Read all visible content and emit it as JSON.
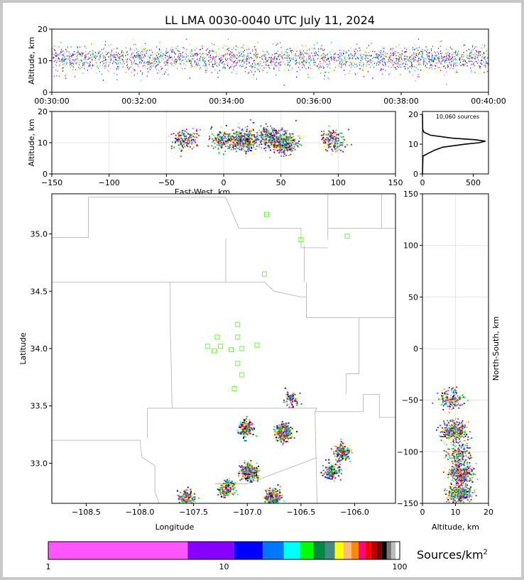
{
  "chart_data": [
    {
      "type": "scatter",
      "panel": "time-altitude",
      "title": "LL LMA 0030-0040 UTC July 11, 2024",
      "ylabel": "Altitude, km",
      "xlabel": "",
      "xticks": [
        "00:30:00",
        "00:32:00",
        "00:34:00",
        "00:36:00",
        "00:38:00",
        "00:40:00"
      ],
      "xlim_minutes": [
        0,
        10
      ],
      "yticks": [
        0,
        10,
        20
      ],
      "ylim": [
        0,
        20
      ],
      "description_of_density": "sources continuous through the period, concentrated at 6-15 km, mostly near 11 km"
    },
    {
      "type": "heatmap",
      "panel": "eastwest-altitude",
      "xlabel": "East-West, km",
      "ylabel": "Altitude, km",
      "xticks": [
        -150,
        -100,
        -50,
        0,
        50,
        100,
        150
      ],
      "xlim": [
        -150,
        150
      ],
      "yticks": [
        0,
        10,
        20
      ],
      "ylim": [
        0,
        20
      ],
      "clusters": [
        {
          "x": -35,
          "alt": 11,
          "density": "medium"
        },
        {
          "x": 0,
          "alt": 11,
          "density": "medium"
        },
        {
          "x": 18,
          "alt": 11,
          "density": "high"
        },
        {
          "x": 40,
          "alt": 12,
          "density": "medium-high"
        },
        {
          "x": 52,
          "alt": 10,
          "density": "high"
        },
        {
          "x": 95,
          "alt": 11,
          "density": "medium"
        }
      ]
    },
    {
      "type": "line",
      "panel": "altitude-histogram",
      "annotation": "10,060 sources",
      "xticks": [
        0,
        500
      ],
      "xlim": [
        0,
        650
      ],
      "yticks": [
        0,
        10,
        20
      ],
      "ylim": [
        0,
        21
      ],
      "profile": [
        {
          "alt": 0,
          "count": 0
        },
        {
          "alt": 6,
          "count": 5
        },
        {
          "alt": 7,
          "count": 60
        },
        {
          "alt": 8,
          "count": 120
        },
        {
          "alt": 9,
          "count": 200
        },
        {
          "alt": 10,
          "count": 420
        },
        {
          "alt": 10.5,
          "count": 560
        },
        {
          "alt": 11,
          "count": 620
        },
        {
          "alt": 11.5,
          "count": 520
        },
        {
          "alt": 12,
          "count": 300
        },
        {
          "alt": 13,
          "count": 80
        },
        {
          "alt": 14,
          "count": 15
        },
        {
          "alt": 15,
          "count": 2
        },
        {
          "alt": 20,
          "count": 0
        }
      ]
    },
    {
      "type": "heatmap",
      "panel": "plan-view",
      "xlabel": "Longitude",
      "ylabel": "Latitude",
      "xticks": [
        -108.5,
        -108.0,
        -107.5,
        -107.0,
        -106.5,
        -106.0
      ],
      "xlim": [
        -108.82,
        -105.62
      ],
      "yticks": [
        33.0,
        33.5,
        34.0,
        34.5,
        35.0
      ],
      "ylim": [
        32.65,
        35.35
      ],
      "stations": [
        {
          "lon": -106.82,
          "lat": 35.17
        },
        {
          "lon": -106.5,
          "lat": 34.95
        },
        {
          "lon": -106.07,
          "lat": 34.98
        },
        {
          "lon": -106.84,
          "lat": 34.65
        },
        {
          "lon": -107.09,
          "lat": 34.21
        },
        {
          "lon": -107.28,
          "lat": 34.1
        },
        {
          "lon": -107.09,
          "lat": 34.1
        },
        {
          "lon": -107.37,
          "lat": 34.02
        },
        {
          "lon": -107.31,
          "lat": 33.98
        },
        {
          "lon": -107.25,
          "lat": 34.02
        },
        {
          "lon": -107.15,
          "lat": 33.99
        },
        {
          "lon": -107.05,
          "lat": 34.0
        },
        {
          "lon": -106.91,
          "lat": 34.03
        },
        {
          "lon": -107.09,
          "lat": 33.87
        },
        {
          "lon": -107.05,
          "lat": 33.77
        },
        {
          "lon": -107.12,
          "lat": 33.65
        }
      ],
      "clusters": [
        {
          "lon": -106.6,
          "lat": 33.56,
          "density": "low"
        },
        {
          "lon": -107.02,
          "lat": 33.32,
          "density": "medium"
        },
        {
          "lon": -106.67,
          "lat": 33.27,
          "density": "high"
        },
        {
          "lon": -106.12,
          "lat": 33.1,
          "density": "medium"
        },
        {
          "lon": -106.22,
          "lat": 32.93,
          "density": "medium"
        },
        {
          "lon": -106.99,
          "lat": 32.93,
          "density": "high"
        },
        {
          "lon": -107.2,
          "lat": 32.78,
          "density": "medium"
        },
        {
          "lon": -107.57,
          "lat": 32.7,
          "density": "medium"
        },
        {
          "lon": -106.77,
          "lat": 32.7,
          "density": "high"
        }
      ]
    },
    {
      "type": "heatmap",
      "panel": "altitude-northsouth",
      "xlabel": "Altitude, km",
      "ylabel": "North-South, km",
      "xticks": [
        0,
        10,
        20
      ],
      "xlim": [
        0,
        20
      ],
      "yticks": [
        -150,
        -100,
        -50,
        0,
        50,
        100,
        150
      ],
      "ylim": [
        -150,
        150
      ],
      "clusters": [
        {
          "alt": 8.5,
          "ns": -48,
          "density": "medium"
        },
        {
          "alt": 9.5,
          "ns": -80,
          "density": "high"
        },
        {
          "alt": 11,
          "ns": -102,
          "density": "medium"
        },
        {
          "alt": 11.5,
          "ns": -120,
          "density": "high"
        },
        {
          "alt": 11,
          "ns": -140,
          "density": "high"
        }
      ]
    }
  ],
  "colorbar": {
    "label": "Sources/km",
    "label_sup": "2",
    "tick_labels": [
      "1",
      "10",
      "100"
    ],
    "colors": [
      "#ff55ff",
      "#8800ff",
      "#0000ff",
      "#0077ff",
      "#00ffff",
      "#00ff00",
      "#008844",
      "#448888",
      "#ffff00",
      "#ffbb77",
      "#ff8800",
      "#ff0088",
      "#ff0000",
      "#bb0000",
      "#770000",
      "#000000",
      "#777777",
      "#bbbbbb",
      "#ffffff"
    ]
  }
}
